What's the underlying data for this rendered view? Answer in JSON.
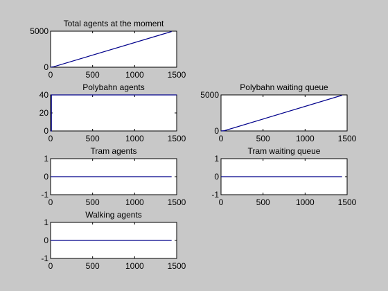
{
  "figure": {
    "background": "#c8c8c8",
    "axes_background": "#ffffff",
    "line_color": "#00008b"
  },
  "chart_data": [
    {
      "type": "line",
      "title": "Total agents at the moment",
      "xlim": [
        0,
        1500
      ],
      "ylim": [
        0,
        5000
      ],
      "xticks": [
        "0",
        "500",
        "1000",
        "1500"
      ],
      "yticks": [
        "0",
        "5000"
      ],
      "series": [
        {
          "x": [
            0,
            40,
            1440
          ],
          "y": [
            0,
            80,
            4950
          ]
        }
      ]
    },
    {
      "type": "line",
      "title": "Polybahn agents",
      "xlim": [
        0,
        1500
      ],
      "ylim": [
        0,
        40
      ],
      "xticks": [
        "0",
        "500",
        "1000",
        "1500"
      ],
      "yticks": [
        "0",
        "20",
        "40"
      ],
      "series": [
        {
          "x": [
            0,
            10,
            10,
            1500
          ],
          "y": [
            0,
            0,
            40,
            40
          ]
        }
      ]
    },
    {
      "type": "line",
      "title": "Polybahn waiting queue",
      "xlim": [
        0,
        1500
      ],
      "ylim": [
        0,
        5000
      ],
      "xticks": [
        "0",
        "500",
        "1000",
        "1500"
      ],
      "yticks": [
        "0",
        "5000"
      ],
      "series": [
        {
          "x": [
            0,
            40,
            1440
          ],
          "y": [
            0,
            40,
            4950
          ]
        }
      ]
    },
    {
      "type": "line",
      "title": "Tram agents",
      "xlim": [
        0,
        1500
      ],
      "ylim": [
        -1,
        1
      ],
      "xticks": [
        "0",
        "500",
        "1000",
        "1500"
      ],
      "yticks": [
        "-1",
        "0",
        "1"
      ],
      "series": [
        {
          "x": [
            0,
            1440
          ],
          "y": [
            0,
            0
          ]
        }
      ]
    },
    {
      "type": "line",
      "title": "Tram waiting queue",
      "xlim": [
        0,
        1500
      ],
      "ylim": [
        -1,
        1
      ],
      "xticks": [
        "0",
        "500",
        "1000",
        "1500"
      ],
      "yticks": [
        "-1",
        "0",
        "1"
      ],
      "series": [
        {
          "x": [
            0,
            1440
          ],
          "y": [
            0,
            0
          ]
        }
      ]
    },
    {
      "type": "line",
      "title": "Walking agents",
      "xlim": [
        0,
        1500
      ],
      "ylim": [
        -1,
        1
      ],
      "xticks": [
        "0",
        "500",
        "1000",
        "1500"
      ],
      "yticks": [
        "-1",
        "0",
        "1"
      ],
      "series": [
        {
          "x": [
            0,
            1440
          ],
          "y": [
            0,
            0
          ]
        }
      ]
    }
  ]
}
